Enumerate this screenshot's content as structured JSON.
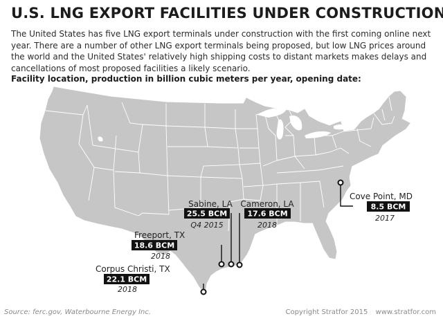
{
  "title": "U.S. LNG EXPORT FACILITIES UNDER CONSTRUCTION",
  "description": "The United States has five LNG export terminals under construction with the first coming online next year. There are a number of other LNG export terminals being proposed, but low LNG prices around the world and the United States' relatively high shipping costs to distant markets makes delays and cancellations of most proposed facilities a likely scenario.",
  "subheading": "Facility location, production in billion cubic meters per year, opening date:",
  "facilities": [
    {
      "name": "Sabine, LA",
      "capacity": "25.5 BCM",
      "date": "Q4 2015"
    },
    {
      "name": "Cameron, LA",
      "capacity": "17.6 BCM",
      "date": "2018"
    },
    {
      "name": "Cove Point, MD",
      "capacity": "8.5 BCM",
      "date": "2017"
    },
    {
      "name": "Freeport, TX",
      "capacity": "18.6 BCM",
      "date": "2018"
    },
    {
      "name": "Corpus Christi, TX",
      "capacity": "22.1 BCM",
      "date": "2018"
    }
  ],
  "footer": {
    "source": "Source: ferc.gov, Waterbourne Energy Inc.",
    "copyright": "Copyright Stratfor 2015",
    "website": "www.stratfor.com"
  },
  "colors": {
    "land": "#c6c6c6",
    "border": "#ffffff",
    "label_box": "#111111",
    "marker_ring": "#111111"
  }
}
